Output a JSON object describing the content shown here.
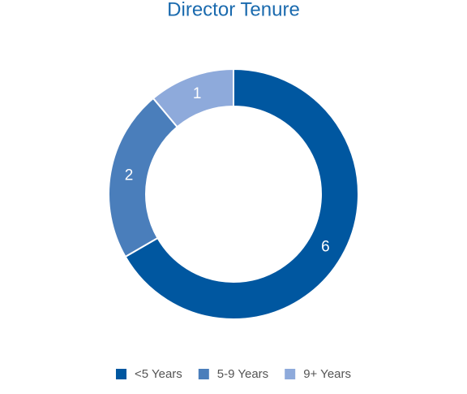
{
  "chart_data": {
    "type": "donut",
    "title": "Director Tenure",
    "categories": [
      "<5 Years",
      "5-9 Years",
      "9+ Years"
    ],
    "values": [
      6,
      2,
      1
    ],
    "colors": [
      "#0057a0",
      "#4a7ebb",
      "#8eaadb"
    ],
    "legend": "bottom"
  }
}
